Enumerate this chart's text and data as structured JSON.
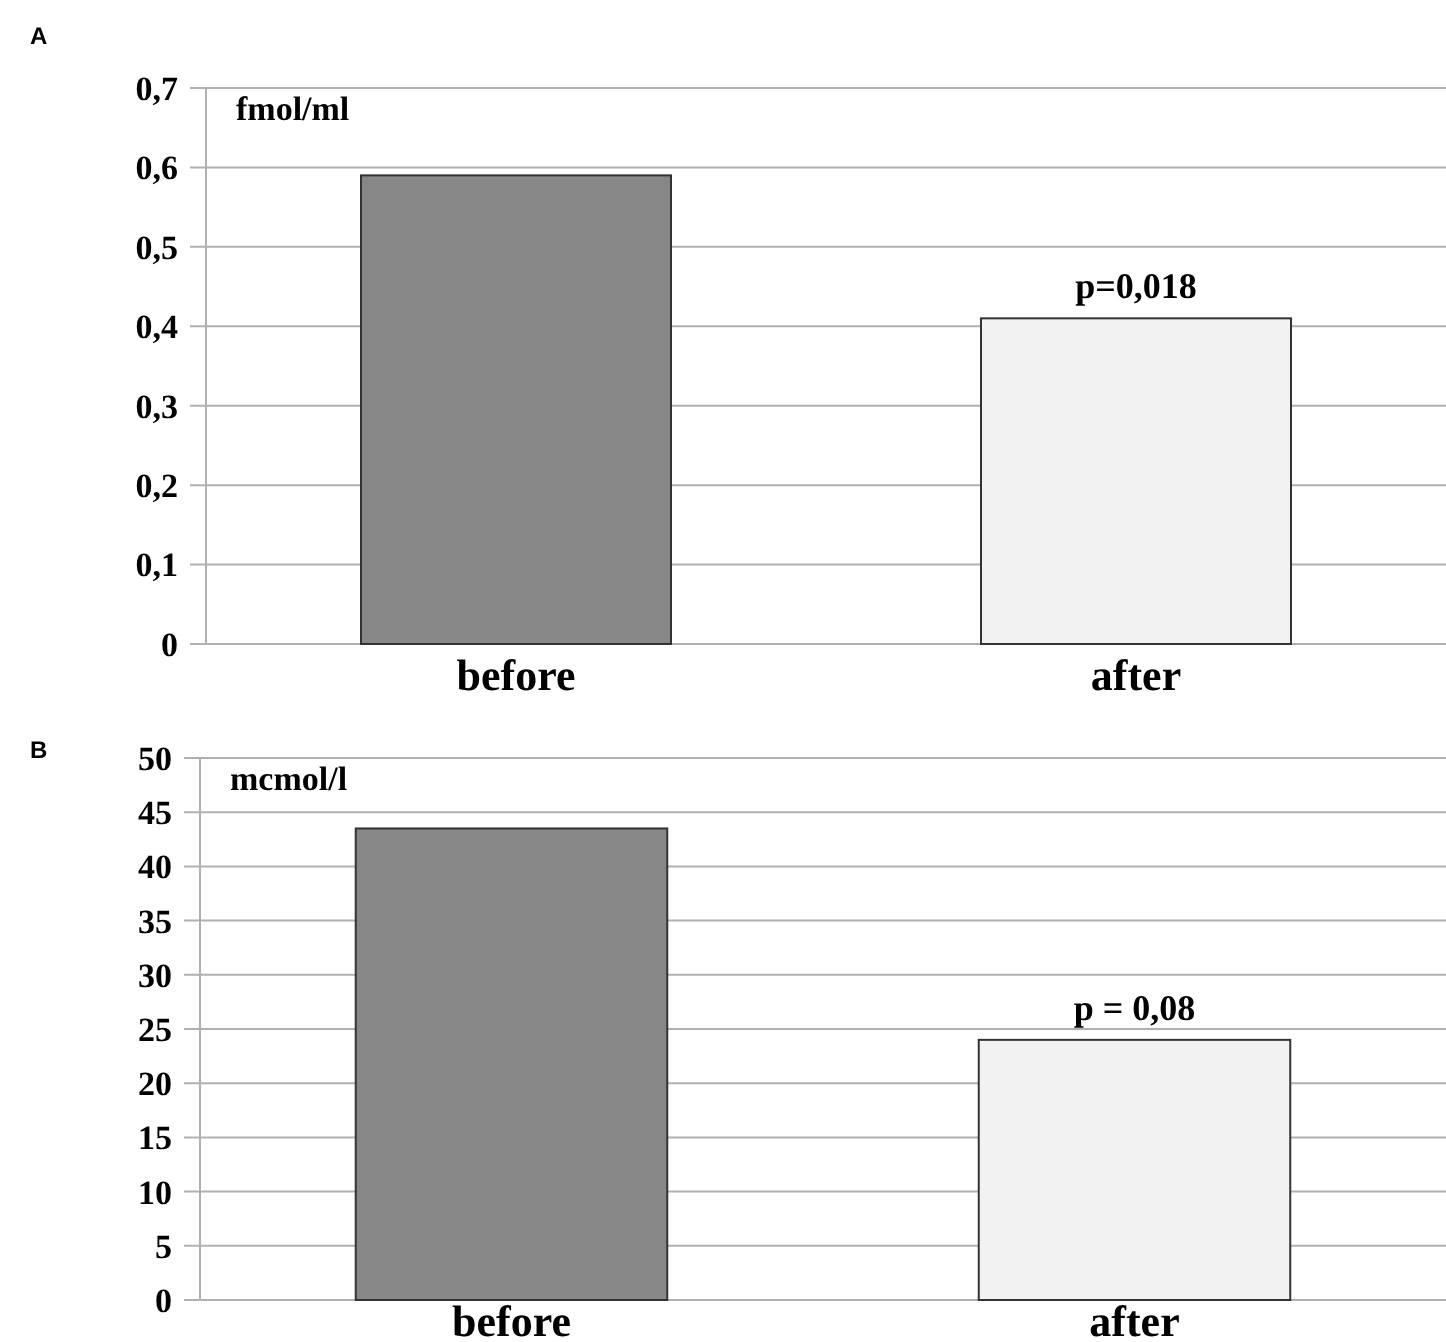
{
  "chart_data": [
    {
      "type": "bar",
      "title": "A",
      "ylabel": "fmol/ml",
      "categories": [
        "before",
        "after"
      ],
      "values": [
        0.59,
        0.41
      ],
      "colors": [
        "#878787",
        "#f2f2f2"
      ],
      "ylim": [
        0,
        0.7
      ],
      "yticks": [
        0,
        {
          "value": 0.1,
          "label": "0,1"
        },
        {
          "value": 0.2,
          "label": "0,2"
        },
        {
          "value": 0.3,
          "label": "0,3"
        },
        {
          "value": 0.4,
          "label": "0,4"
        },
        {
          "value": 0.5,
          "label": "0,5"
        },
        {
          "value": 0.6,
          "label": "0,6"
        },
        {
          "value": 0.7,
          "label": "0,7"
        }
      ],
      "grid": "y",
      "annotations": [
        {
          "text": "p=0,018",
          "x": "after",
          "y": 0.41
        }
      ]
    },
    {
      "type": "bar",
      "title": "B",
      "ylabel": "mcmol/l",
      "categories": [
        "before",
        "after"
      ],
      "values": [
        43.5,
        24
      ],
      "colors": [
        "#878787",
        "#f2f2f2"
      ],
      "ylim": [
        0,
        50
      ],
      "yticks": [
        0,
        5,
        10,
        15,
        20,
        25,
        30,
        35,
        40,
        45,
        50
      ],
      "grid": "y",
      "annotations": [
        {
          "text": "p = 0,08",
          "x": "after",
          "y": 24
        }
      ]
    }
  ]
}
